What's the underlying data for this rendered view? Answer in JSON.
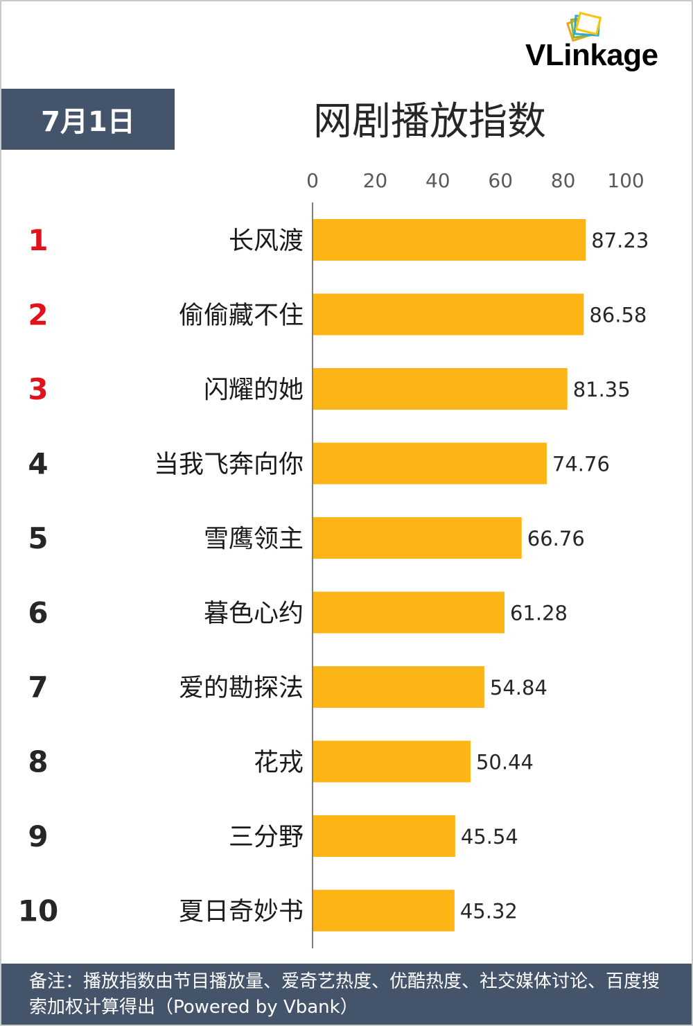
{
  "header": {
    "date": "7月1日",
    "title": "网剧播放指数",
    "logo": "VLinkage"
  },
  "footer": {
    "note": "备注：播放指数由节目播放量、爱奇艺热度、优酷热度、社交媒体讨论、百度搜索加权计算得出（Powered by Vbank）"
  },
  "colors": {
    "bar": "#fdb515",
    "header_bg": "#44546a",
    "top_rank": "#e0121b",
    "rank": "#262626"
  },
  "chart_data": {
    "type": "bar",
    "orientation": "horizontal",
    "title": "网剧播放指数",
    "xlim": [
      0,
      100
    ],
    "x_ticks": [
      "0",
      "20",
      "40",
      "60",
      "80",
      "100"
    ],
    "x_axis_position": "top",
    "ranks": [
      "1",
      "2",
      "3",
      "4",
      "5",
      "6",
      "7",
      "8",
      "9",
      "10"
    ],
    "categories": [
      "长风渡",
      "偷偷藏不住",
      "闪耀的她",
      "当我飞奔向你",
      "雪鹰领主",
      "暮色心约",
      "爱的勘探法",
      "花戎",
      "三分野",
      "夏日奇妙书"
    ],
    "values": [
      87.23,
      86.58,
      81.35,
      74.76,
      66.76,
      61.28,
      54.84,
      50.44,
      45.54,
      45.32
    ],
    "value_labels": [
      "87.23",
      "86.58",
      "81.35",
      "74.76",
      "66.76",
      "61.28",
      "54.84",
      "50.44",
      "45.54",
      "45.32"
    ]
  }
}
